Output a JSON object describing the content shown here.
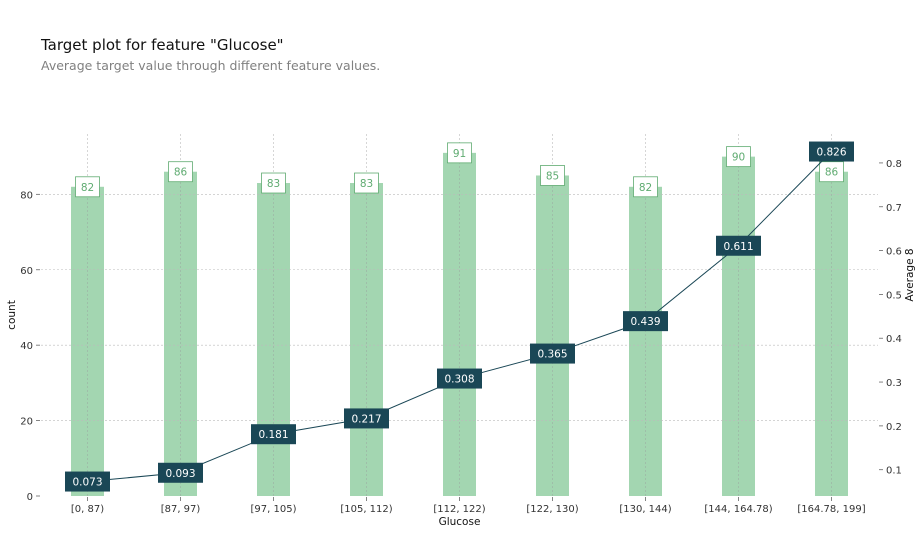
{
  "title": "Target plot for feature \"Glucose\"",
  "subtitle": "Average target value through different feature values.",
  "chart_data": {
    "type": "bar",
    "categories": [
      "[0, 87)",
      "[87, 97)",
      "[97, 105)",
      "[105, 112)",
      "[112, 122)",
      "[122, 130)",
      "[130, 144)",
      "[144, 164.78)",
      "[164.78, 199]"
    ],
    "xlabel": "Glucose",
    "series": [
      {
        "axis": "left",
        "type": "bar",
        "values": [
          82,
          86,
          83,
          83,
          91,
          85,
          82,
          90,
          86
        ],
        "color": "#a3d6b1"
      },
      {
        "axis": "right",
        "type": "line",
        "values": [
          0.073,
          0.093,
          0.181,
          0.217,
          0.308,
          0.365,
          0.439,
          0.611,
          0.826
        ],
        "color": "#1a4756"
      }
    ],
    "y_left": {
      "label": "count",
      "ylim": [
        0,
        96
      ],
      "ticks": [
        0,
        20,
        40,
        60,
        80
      ]
    },
    "y_right": {
      "label": "Average 8",
      "ylim": [
        0.04,
        0.866
      ],
      "ticks": [
        0.1,
        0.2,
        0.3,
        0.4,
        0.5,
        0.6,
        0.7,
        0.8
      ]
    },
    "grid": true,
    "bar_label_color": "#5fab71",
    "line_label_bg": "#1a4756"
  }
}
